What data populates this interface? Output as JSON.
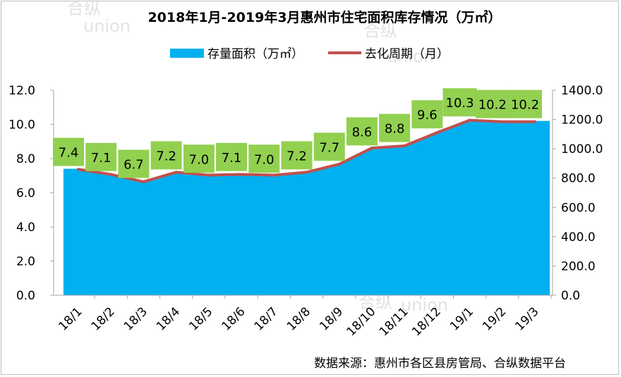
{
  "chart_data": {
    "type": "area",
    "title": "2018年1月-2019年3月惠州市住宅面积库存情况（万㎡）",
    "categories": [
      "18/1",
      "18/2",
      "18/3",
      "18/4",
      "18/5",
      "18/6",
      "18/7",
      "18/8",
      "18/9",
      "18/10",
      "18/11",
      "18/12",
      "19/1",
      "19/2",
      "19/3"
    ],
    "series": [
      {
        "name": "存量面积（万㎡）",
        "type": "area",
        "axis": "left",
        "color": "#00b0f0",
        "values": [
          7.4,
          7.1,
          6.7,
          7.2,
          7.0,
          7.1,
          7.0,
          7.2,
          7.7,
          8.6,
          8.8,
          9.6,
          10.3,
          10.2,
          10.2
        ],
        "data_labels": [
          "7.4",
          "7.1",
          "6.7",
          "7.2",
          "7.0",
          "7.1",
          "7.0",
          "7.2",
          "7.7",
          "8.6",
          "8.8",
          "9.6",
          "10.3",
          "10.2",
          "10.2"
        ],
        "label_background": "#92d050"
      },
      {
        "name": "去化周期（月）",
        "type": "line",
        "axis": "right",
        "color": "#c0504d",
        "values": [
          860,
          825,
          775,
          840,
          820,
          825,
          820,
          840,
          895,
          1005,
          1020,
          1110,
          1195,
          1185,
          1185
        ]
      }
    ],
    "left_axis": {
      "ylim": [
        0,
        12
      ],
      "ticks": [
        "0.0",
        "2.0",
        "4.0",
        "6.0",
        "8.0",
        "10.0",
        "12.0"
      ]
    },
    "right_axis": {
      "ylim": [
        0,
        1400
      ],
      "ticks": [
        "0.0",
        "200.0",
        "400.0",
        "600.0",
        "800.0",
        "1000.0",
        "1200.0",
        "1400.0"
      ]
    },
    "grid": false,
    "legend_position": "top-center",
    "source_note": "数据来源：惠州市各区县房管局、合纵数据平台",
    "watermark": [
      "合纵",
      "union"
    ]
  }
}
